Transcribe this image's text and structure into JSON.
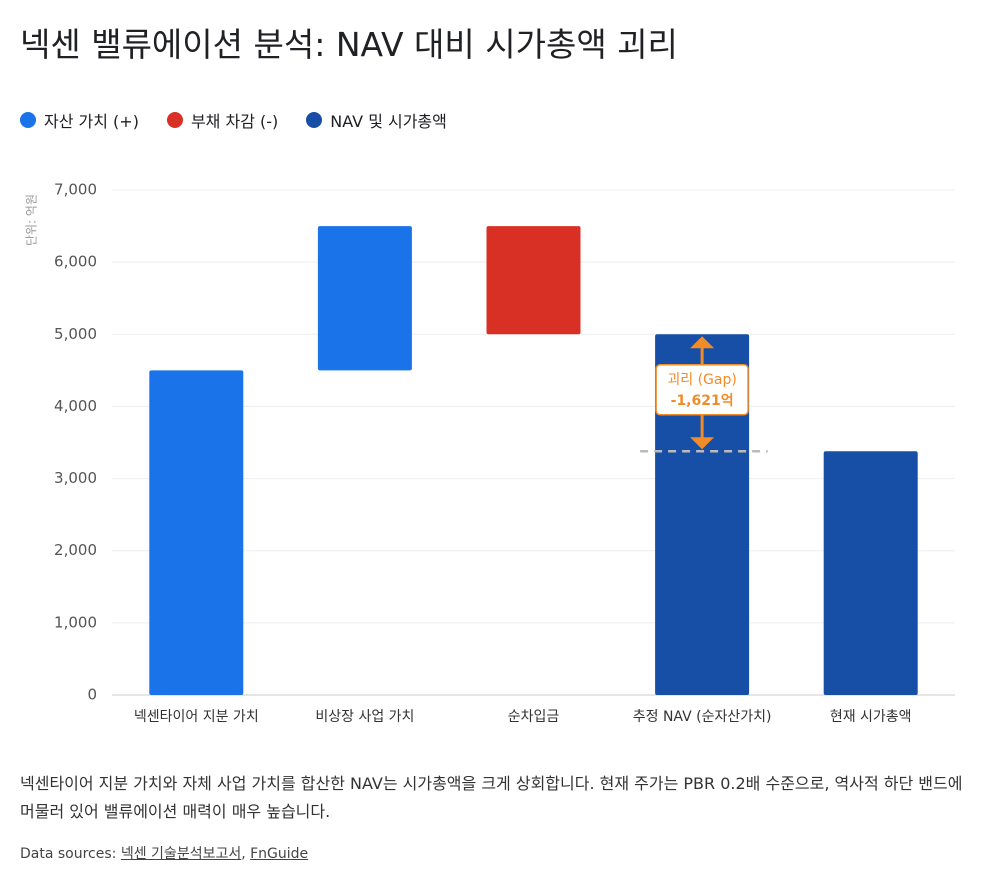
{
  "title": "넥센 밸류에이션 분석: NAV 대비 시가총액 괴리",
  "chart_data": {
    "type": "waterfall",
    "legend": [
      {
        "name": "자산 가치 (+)",
        "color": "#1a73e8",
        "kind": "increase"
      },
      {
        "name": "부채 차감 (-)",
        "color": "#d93025",
        "kind": "decrease"
      },
      {
        "name": "NAV 및 시가총액",
        "color": "#174ea6",
        "kind": "total"
      }
    ],
    "categories": [
      "넥센타이어 지분 가치",
      "비상장 사업 가치",
      "순차입금",
      "추정 NAV (순자산가치)",
      "현재 시가총액"
    ],
    "values": [
      4500,
      2000,
      -1500,
      5000,
      3379
    ],
    "kinds": [
      "increase",
      "increase",
      "decrease",
      "total",
      "total"
    ],
    "y_label": "단위: 억원",
    "ylim": [
      0,
      7000
    ],
    "yticks": [
      0,
      {
        "value": 1000,
        "label": "1,000"
      },
      {
        "value": 2000,
        "label": "2,000"
      },
      {
        "value": 3000,
        "label": "3,000"
      },
      {
        "value": 4000,
        "label": "4,000"
      },
      {
        "value": 5000,
        "label": "5,000"
      },
      {
        "value": 6000,
        "label": "6,000"
      },
      {
        "value": 7000,
        "label": "7,000"
      }
    ],
    "grid": true,
    "annotation": {
      "label": "괴리 (Gap)",
      "value": -1621,
      "value_label": "-1,621억",
      "color": "#f28c28"
    }
  },
  "description": "넥센타이어 지분 가치와 자체 사업 가치를 합산한 NAV는 시가총액을 크게 상회합니다. 현재 주가는 PBR 0.2배 수준으로, 역사적 하단 밴드에 머물러 있어 밸류에이션 매력이 매우 높습니다.",
  "sources_label": "Data sources:",
  "sources": [
    "넥센 기술분석보고서",
    "FnGuide"
  ]
}
